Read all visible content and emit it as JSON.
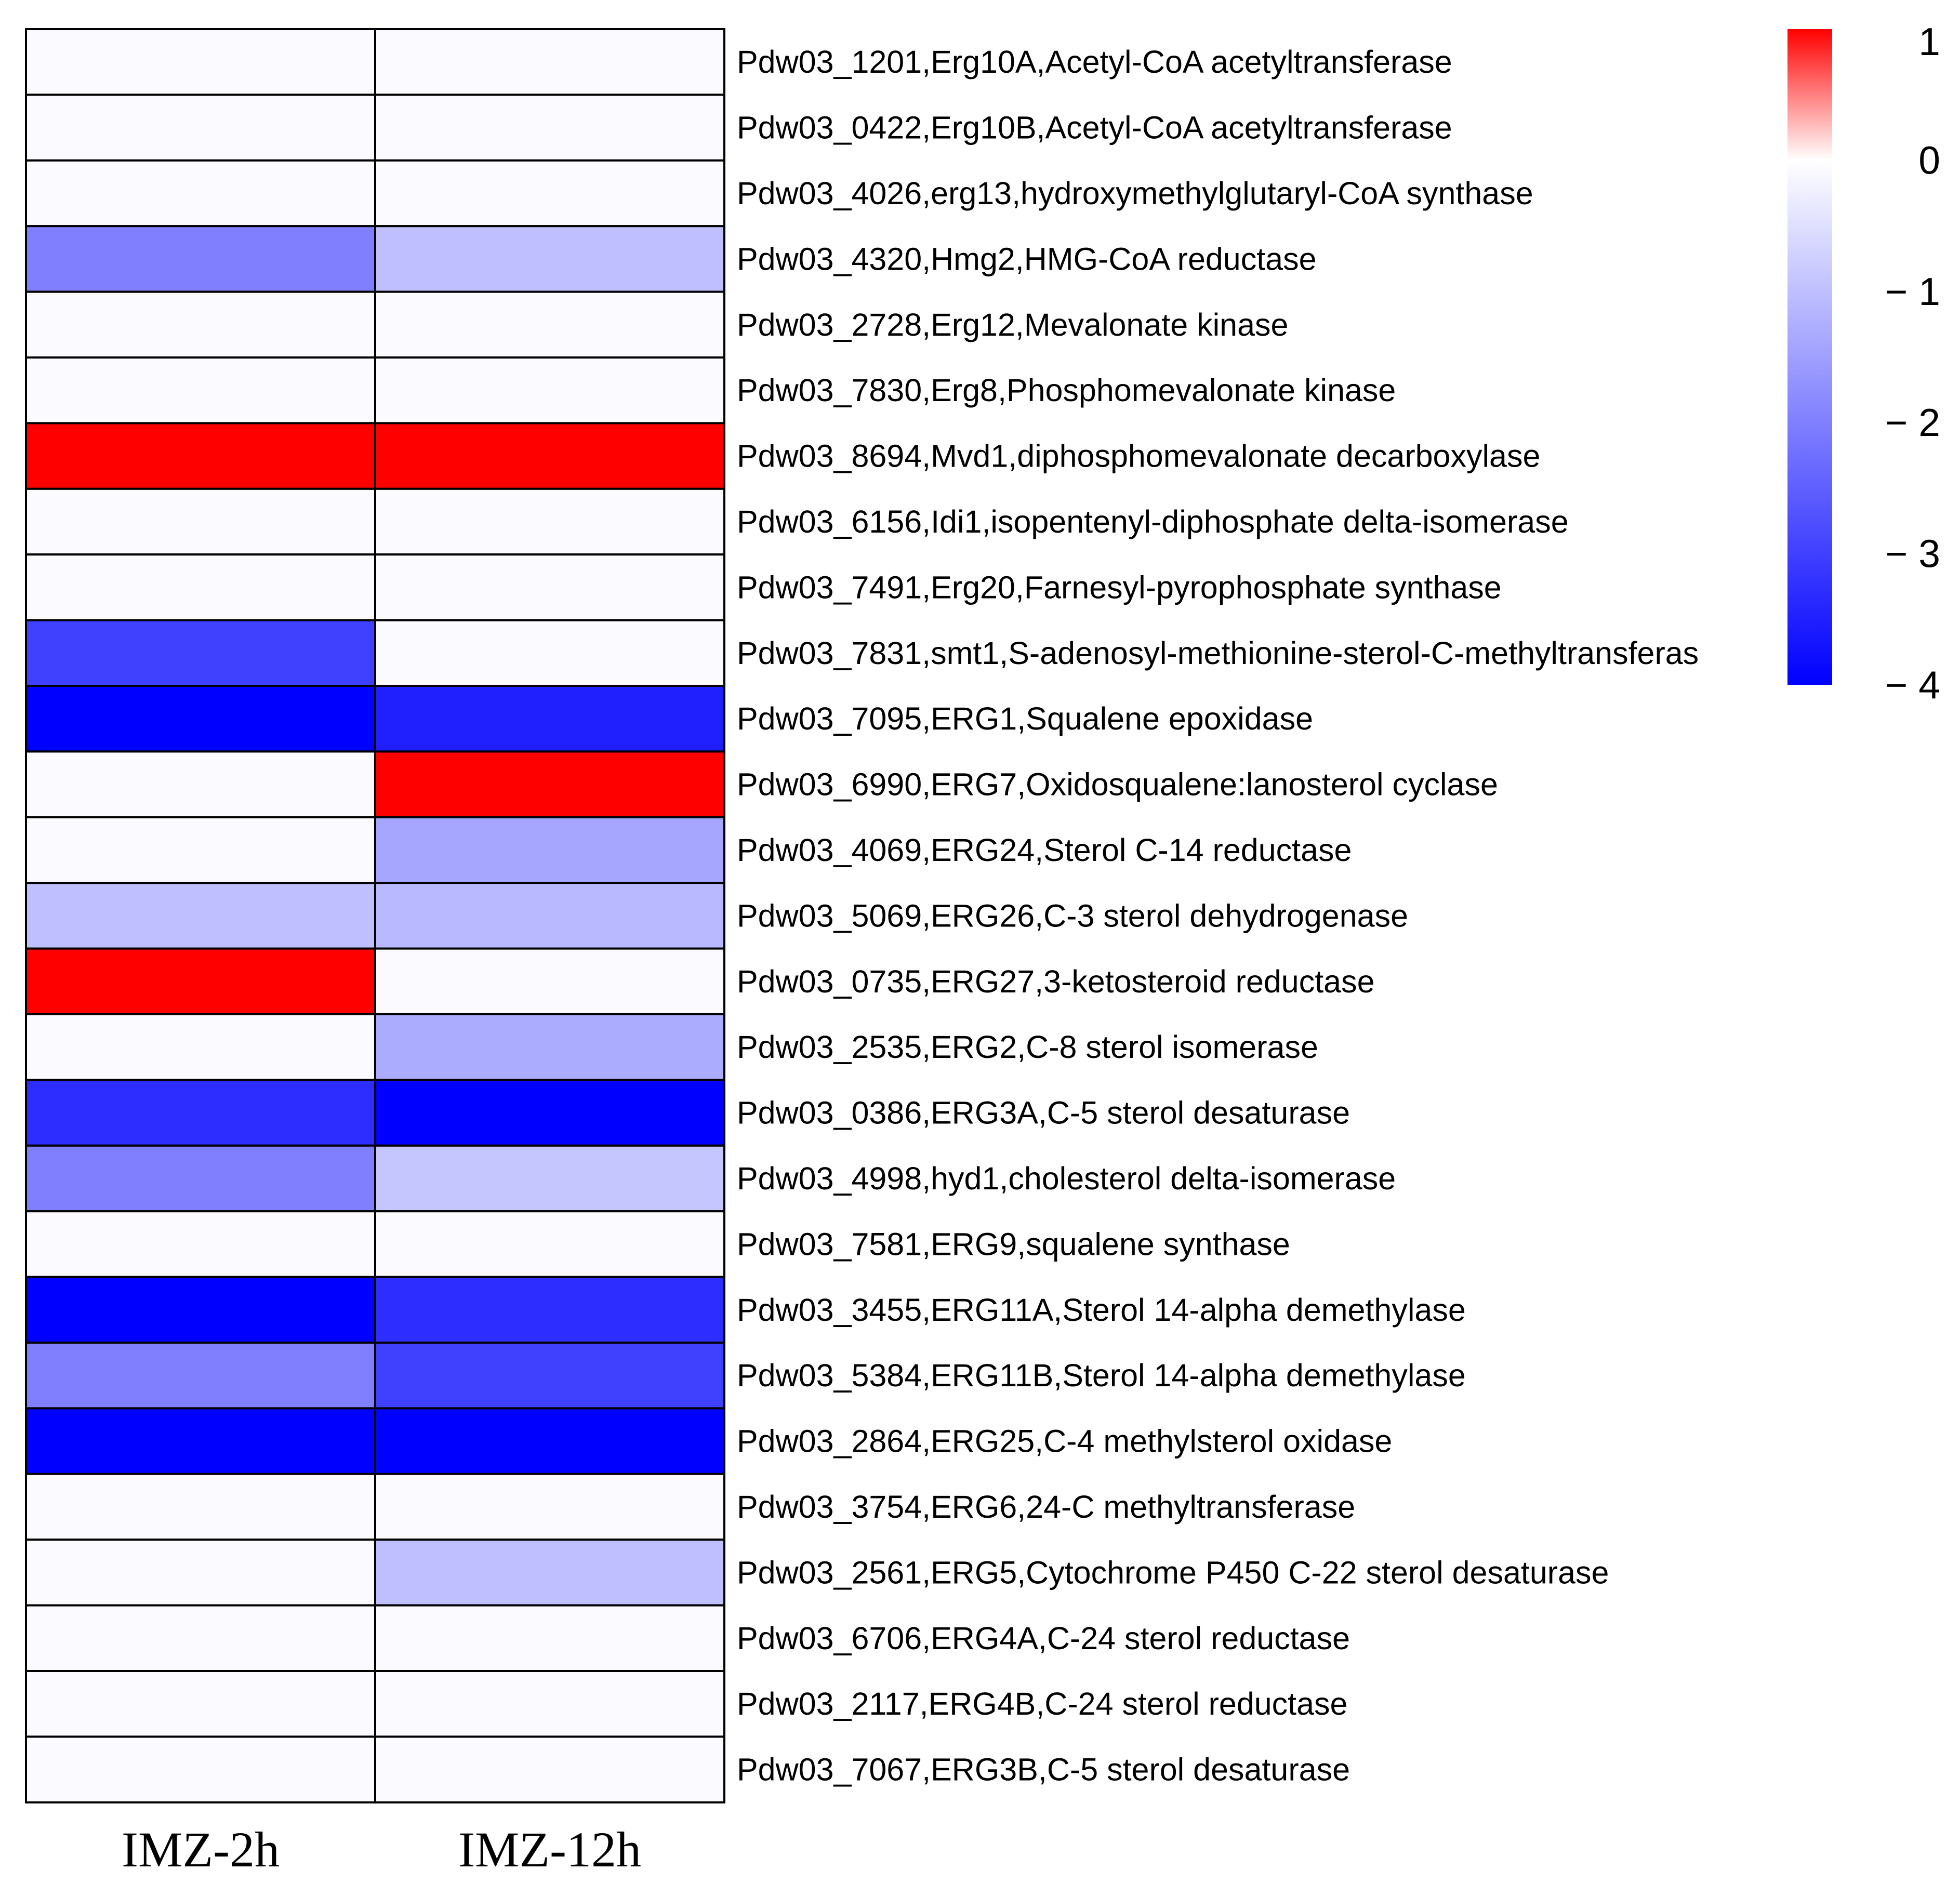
{
  "chart_data": {
    "type": "heatmap",
    "columns": [
      "IMZ-2h",
      "IMZ-12h"
    ],
    "rows": [
      "Pdw03_1201,Erg10A,Acetyl-CoA acetyltransferase",
      "Pdw03_0422,Erg10B,Acetyl-CoA acetyltransferase",
      "Pdw03_4026,erg13,hydroxymethylglutaryl-CoA synthase",
      "Pdw03_4320,Hmg2,HMG-CoA reductase",
      "Pdw03_2728,Erg12,Mevalonate kinase",
      "Pdw03_7830,Erg8,Phosphomevalonate kinase",
      "Pdw03_8694,Mvd1,diphosphomevalonate decarboxylase",
      "Pdw03_6156,Idi1,isopentenyl-diphosphate delta-isomerase",
      "Pdw03_7491,Erg20,Farnesyl-pyrophosphate synthase",
      "Pdw03_7831,smt1,S-adenosyl-methionine-sterol-C-methyltransferas",
      "Pdw03_7095,ERG1,Squalene epoxidase",
      "Pdw03_6990,ERG7,Oxidosqualene:lanosterol cyclase",
      "Pdw03_4069,ERG24,Sterol C-14 reductase",
      "Pdw03_5069,ERG26,C-3 sterol dehydrogenase",
      "Pdw03_0735,ERG27,3-ketosteroid reductase",
      "Pdw03_2535,ERG2,C-8 sterol isomerase",
      "Pdw03_0386,ERG3A,C-5 sterol desaturase",
      "Pdw03_4998,hyd1,cholesterol delta-isomerase",
      "Pdw03_7581,ERG9,squalene synthase",
      "Pdw03_3455,ERG11A,Sterol 14-alpha demethylase",
      "Pdw03_5384,ERG11B,Sterol 14-alpha demethylase",
      "Pdw03_2864,ERG25,C-4 methylsterol oxidase",
      "Pdw03_3754,ERG6,24-C methyltransferase",
      "Pdw03_2561,ERG5,Cytochrome P450 C-22 sterol desaturase",
      "Pdw03_6706,ERG4A,C-24 sterol reductase",
      "Pdw03_2117,ERG4B,C-24 sterol reductase",
      "Pdw03_7067,ERG3B,C-5 sterol desaturase"
    ],
    "values": [
      [
        0,
        0
      ],
      [
        0,
        0
      ],
      [
        0,
        0
      ],
      [
        -2.0,
        -1.0
      ],
      [
        0,
        0
      ],
      [
        0,
        0
      ],
      [
        1.0,
        1.0
      ],
      [
        0,
        0
      ],
      [
        0,
        0
      ],
      [
        -3.0,
        0
      ],
      [
        -4.0,
        -3.5
      ],
      [
        0,
        1.0
      ],
      [
        0,
        -1.4
      ],
      [
        -1.0,
        -1.1
      ],
      [
        1.0,
        0
      ],
      [
        0,
        -1.3
      ],
      [
        -3.3,
        -4.0
      ],
      [
        -2.0,
        -0.9
      ],
      [
        0,
        0
      ],
      [
        -4.0,
        -3.3
      ],
      [
        -2.0,
        -3.0
      ],
      [
        -4.0,
        -4.0
      ],
      [
        0,
        0
      ],
      [
        0,
        -1.0
      ],
      [
        0,
        0
      ],
      [
        0,
        0
      ],
      [
        0,
        0
      ]
    ],
    "colorscale": {
      "min": -4,
      "mid": 0,
      "max": 1,
      "low_color": "#0000ff",
      "mid_color": "#ffffff",
      "high_color": "#ff0000"
    },
    "legend": {
      "position": "top-right",
      "ticks": [
        1,
        0,
        -1,
        -2,
        -3,
        -4
      ],
      "tick_labels": [
        "1",
        "0",
        "− 1",
        "− 2",
        "− 3",
        "− 4"
      ]
    }
  }
}
